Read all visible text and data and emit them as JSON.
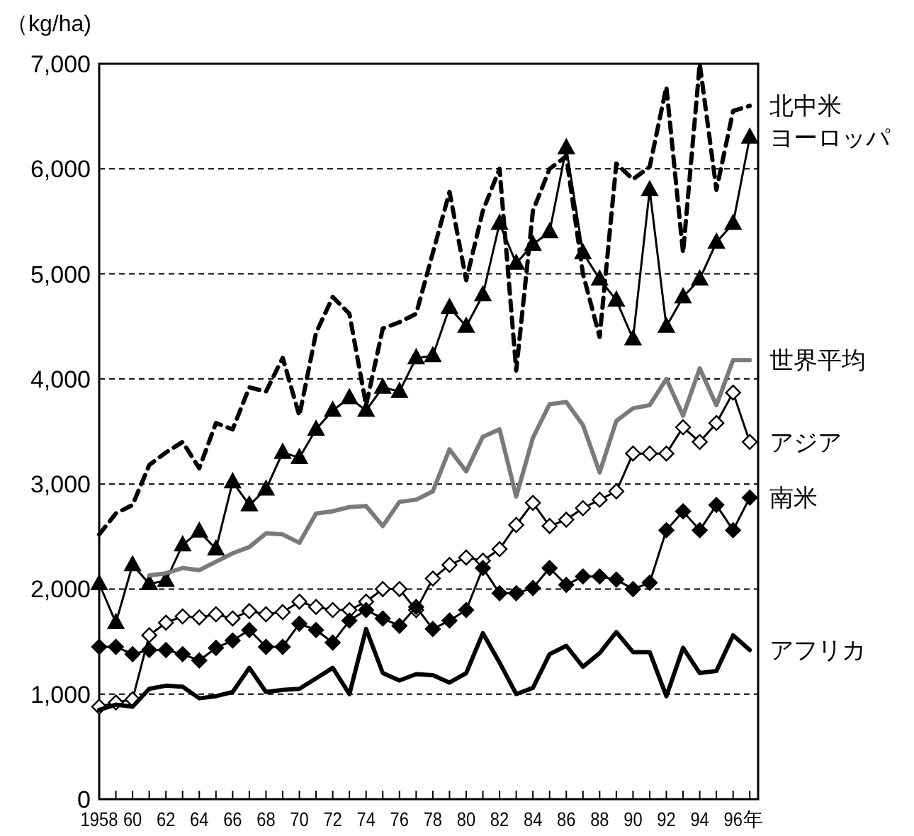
{
  "chart_data": {
    "type": "line",
    "ylabel": "（kg/ha)",
    "grid": "y",
    "xlabel": "年",
    "x": [
      1958,
      1959,
      1960,
      1961,
      1962,
      1963,
      1964,
      1965,
      1966,
      1967,
      1968,
      1969,
      1970,
      1971,
      1972,
      1973,
      1974,
      1975,
      1976,
      1977,
      1978,
      1979,
      1980,
      1981,
      1982,
      1983,
      1984,
      1985,
      1986,
      1987,
      1988,
      1989,
      1990,
      1991,
      1992,
      1993,
      1994,
      1995,
      1996,
      1997
    ],
    "xlim": [
      1958,
      1997.5
    ],
    "xticks": [
      {
        "value": 1958,
        "label": "1958"
      },
      {
        "value": 1959,
        "label": null
      },
      {
        "value": 1960,
        "label": "60"
      },
      {
        "value": 1961,
        "label": null
      },
      {
        "value": 1962,
        "label": "62"
      },
      {
        "value": 1963,
        "label": null
      },
      {
        "value": 1964,
        "label": "64"
      },
      {
        "value": 1965,
        "label": null
      },
      {
        "value": 1966,
        "label": "66"
      },
      {
        "value": 1967,
        "label": null
      },
      {
        "value": 1968,
        "label": "68"
      },
      {
        "value": 1969,
        "label": null
      },
      {
        "value": 1970,
        "label": "70"
      },
      {
        "value": 1971,
        "label": null
      },
      {
        "value": 1972,
        "label": "72"
      },
      {
        "value": 1973,
        "label": null
      },
      {
        "value": 1974,
        "label": "74"
      },
      {
        "value": 1975,
        "label": null
      },
      {
        "value": 1976,
        "label": "76"
      },
      {
        "value": 1977,
        "label": null
      },
      {
        "value": 1978,
        "label": "78"
      },
      {
        "value": 1979,
        "label": null
      },
      {
        "value": 1980,
        "label": "80"
      },
      {
        "value": 1981,
        "label": null
      },
      {
        "value": 1982,
        "label": "82"
      },
      {
        "value": 1983,
        "label": null
      },
      {
        "value": 1984,
        "label": "84"
      },
      {
        "value": 1985,
        "label": null
      },
      {
        "value": 1986,
        "label": "86"
      },
      {
        "value": 1987,
        "label": null
      },
      {
        "value": 1988,
        "label": "88"
      },
      {
        "value": 1989,
        "label": null
      },
      {
        "value": 1990,
        "label": "90"
      },
      {
        "value": 1991,
        "label": null
      },
      {
        "value": 1992,
        "label": "92"
      },
      {
        "value": 1993,
        "label": null
      },
      {
        "value": 1994,
        "label": "94"
      },
      {
        "value": 1995,
        "label": null
      },
      {
        "value": 1996,
        "label": "96"
      },
      {
        "value": 1997,
        "label": null
      }
    ],
    "ylim": [
      0,
      7000
    ],
    "yticks": [
      0,
      {
        "value": 1000,
        "label": "1,000"
      },
      {
        "value": 2000,
        "label": "2,000"
      },
      {
        "value": 3000,
        "label": "3,000"
      },
      {
        "value": 4000,
        "label": "4,000"
      },
      {
        "value": 5000,
        "label": "5,000"
      },
      {
        "value": 6000,
        "label": "6,000"
      },
      {
        "value": 7000,
        "label": "7,000"
      }
    ],
    "series": [
      {
        "name": "北中米",
        "color": "#000000",
        "marker": "none",
        "line_style": "dashed",
        "values": [
          2520,
          2720,
          2800,
          3180,
          3300,
          3400,
          3150,
          3580,
          3520,
          3920,
          3880,
          4200,
          3650,
          4440,
          4780,
          4620,
          3750,
          4480,
          4540,
          4620,
          5200,
          5780,
          4940,
          5600,
          6000,
          4080,
          5600,
          6000,
          6120,
          5000,
          4400,
          6050,
          5900,
          6020,
          6780,
          5200,
          7000,
          5800,
          6550,
          6600
        ]
      },
      {
        "name": "ヨーロッパ",
        "color": "#000000",
        "marker": "triangle",
        "line_style": "solid",
        "values": [
          2050,
          1680,
          2230,
          2050,
          2080,
          2420,
          2550,
          2380,
          3020,
          2800,
          2950,
          3300,
          3250,
          3520,
          3700,
          3820,
          3700,
          3920,
          3880,
          4200,
          4220,
          4680,
          4500,
          4800,
          5480,
          5100,
          5280,
          5400,
          6200,
          5200,
          4950,
          4750,
          4380,
          5800,
          4500,
          4780,
          4950,
          5300,
          5480,
          6300
        ]
      },
      {
        "name": "世界平均",
        "color": "#7a7a7a",
        "marker": "none",
        "line_style": "solid",
        "values": [
          null,
          null,
          null,
          2130,
          2150,
          2200,
          2180,
          2260,
          2340,
          2400,
          2530,
          2520,
          2440,
          2720,
          2740,
          2780,
          2790,
          2600,
          2830,
          2850,
          2930,
          3330,
          3120,
          3450,
          3520,
          2880,
          3440,
          3760,
          3780,
          3560,
          3110,
          3600,
          3720,
          3750,
          4000,
          3650,
          4100,
          3750,
          4180,
          4180
        ]
      },
      {
        "name": "アジア",
        "color": "#000000",
        "marker": "diamond-open",
        "line_style": "solid",
        "values": [
          880,
          920,
          950,
          1560,
          1680,
          1740,
          1730,
          1760,
          1720,
          1790,
          1760,
          1780,
          1880,
          1830,
          1800,
          1800,
          1880,
          2000,
          2000,
          1800,
          2100,
          2230,
          2300,
          2270,
          2380,
          2610,
          2820,
          2600,
          2660,
          2770,
          2850,
          2930,
          3290,
          3290,
          3290,
          3540,
          3400,
          3580,
          3870,
          3400
        ]
      },
      {
        "name": "南米",
        "color": "#000000",
        "marker": "diamond",
        "line_style": "solid",
        "values": [
          1450,
          1450,
          1380,
          1420,
          1420,
          1380,
          1320,
          1440,
          1510,
          1610,
          1450,
          1450,
          1670,
          1610,
          1490,
          1700,
          1800,
          1720,
          1650,
          1830,
          1620,
          1700,
          1800,
          2200,
          1960,
          1960,
          2010,
          2200,
          2040,
          2120,
          2120,
          2090,
          2000,
          2060,
          2560,
          2740,
          2560,
          2800,
          2560,
          2870
        ]
      },
      {
        "name": "アフリカ",
        "color": "#000000",
        "marker": "none",
        "line_style": "solid",
        "values": [
          850,
          900,
          880,
          1050,
          1080,
          1070,
          960,
          980,
          1020,
          1250,
          1020,
          1040,
          1050,
          1150,
          1250,
          1000,
          1620,
          1200,
          1130,
          1190,
          1180,
          1110,
          1200,
          1580,
          1300,
          1000,
          1060,
          1380,
          1460,
          1260,
          1390,
          1590,
          1400,
          1400,
          980,
          1440,
          1200,
          1220,
          1560,
          1420
        ]
      }
    ]
  }
}
